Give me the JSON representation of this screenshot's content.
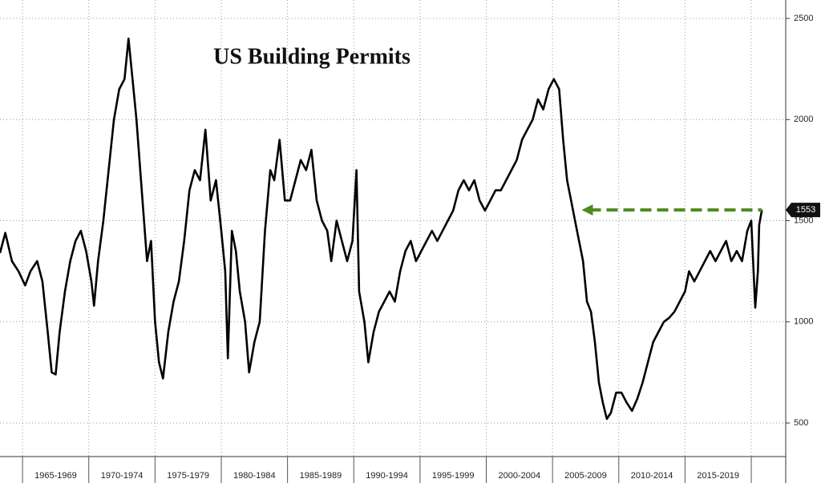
{
  "chart_data": {
    "type": "line",
    "title": "US Building Permits",
    "color": "#000000",
    "x": [
      1963.3,
      1963.7,
      1964.2,
      1964.7,
      1965.2,
      1965.6,
      1966.1,
      1966.5,
      1966.9,
      1967.2,
      1967.5,
      1967.8,
      1968.2,
      1968.6,
      1969.0,
      1969.4,
      1969.8,
      1970.2,
      1970.4,
      1970.7,
      1971.1,
      1971.5,
      1971.9,
      1972.3,
      1972.7,
      1973.0,
      1973.3,
      1973.6,
      1974.0,
      1974.4,
      1974.7,
      1975.0,
      1975.3,
      1975.6,
      1976.0,
      1976.4,
      1976.8,
      1977.2,
      1977.6,
      1978.0,
      1978.4,
      1978.8,
      1979.2,
      1979.6,
      1980.0,
      1980.3,
      1980.5,
      1980.8,
      1981.1,
      1981.4,
      1981.8,
      1982.1,
      1982.5,
      1982.9,
      1983.3,
      1983.7,
      1984.0,
      1984.4,
      1984.8,
      1985.2,
      1985.6,
      1986.0,
      1986.4,
      1986.8,
      1987.2,
      1987.6,
      1988.0,
      1988.3,
      1988.7,
      1989.1,
      1989.5,
      1989.9,
      1990.2,
      1990.4,
      1990.8,
      1991.1,
      1991.5,
      1991.9,
      1992.3,
      1992.7,
      1993.1,
      1993.5,
      1993.9,
      1994.3,
      1994.7,
      1995.1,
      1995.5,
      1995.9,
      1996.3,
      1996.7,
      1997.1,
      1997.5,
      1997.9,
      1998.3,
      1998.7,
      1999.1,
      1999.5,
      1999.9,
      2000.3,
      2000.7,
      2001.1,
      2001.5,
      2001.9,
      2002.3,
      2002.7,
      2003.1,
      2003.5,
      2003.9,
      2004.3,
      2004.7,
      2005.1,
      2005.5,
      2005.8,
      2006.1,
      2006.4,
      2006.7,
      2007.0,
      2007.3,
      2007.6,
      2007.9,
      2008.2,
      2008.5,
      2008.8,
      2009.1,
      2009.4,
      2009.8,
      2010.2,
      2010.6,
      2011.0,
      2011.4,
      2011.8,
      2012.2,
      2012.6,
      2013.0,
      2013.4,
      2013.8,
      2014.2,
      2014.6,
      2015.0,
      2015.3,
      2015.7,
      2016.1,
      2016.5,
      2016.9,
      2017.3,
      2017.7,
      2018.1,
      2018.5,
      2018.9,
      2019.3,
      2019.7,
      2020.0,
      2020.3,
      2020.5,
      2020.6,
      2020.8
    ],
    "values": [
      1340,
      1440,
      1300,
      1250,
      1180,
      1250,
      1300,
      1200,
      950,
      750,
      740,
      950,
      1150,
      1300,
      1400,
      1450,
      1350,
      1200,
      1080,
      1300,
      1500,
      1750,
      2000,
      2150,
      2200,
      2400,
      2200,
      2000,
      1650,
      1300,
      1400,
      1000,
      800,
      720,
      950,
      1100,
      1200,
      1400,
      1650,
      1750,
      1700,
      1950,
      1600,
      1700,
      1450,
      1250,
      820,
      1450,
      1350,
      1150,
      1000,
      750,
      900,
      1000,
      1450,
      1750,
      1700,
      1900,
      1600,
      1600,
      1700,
      1800,
      1750,
      1850,
      1600,
      1500,
      1450,
      1300,
      1500,
      1400,
      1300,
      1400,
      1750,
      1150,
      1000,
      800,
      950,
      1050,
      1100,
      1150,
      1100,
      1250,
      1350,
      1400,
      1300,
      1350,
      1400,
      1450,
      1400,
      1450,
      1500,
      1550,
      1650,
      1700,
      1650,
      1700,
      1600,
      1550,
      1600,
      1650,
      1650,
      1700,
      1750,
      1800,
      1900,
      1950,
      2000,
      2100,
      2050,
      2150,
      2200,
      2150,
      1900,
      1700,
      1600,
      1500,
      1400,
      1300,
      1100,
      1050,
      900,
      700,
      600,
      520,
      550,
      650,
      650,
      600,
      560,
      620,
      700,
      800,
      900,
      950,
      1000,
      1020,
      1050,
      1100,
      1150,
      1250,
      1200,
      1250,
      1300,
      1350,
      1300,
      1350,
      1400,
      1300,
      1350,
      1300,
      1450,
      1500,
      1070,
      1250,
      1480,
      1553
    ],
    "xlim": [
      1963.3,
      2022.6
    ],
    "ylim": [
      334,
      2591
    ],
    "yticks": [
      500,
      1000,
      1500,
      2000,
      2500
    ],
    "xticks": [
      1965,
      1970,
      1975,
      1980,
      1985,
      1990,
      1995,
      2000,
      2005,
      2010,
      2015,
      2020
    ],
    "period_labels": [
      "1965-1969",
      "1970-1974",
      "1975-1979",
      "1980-1984",
      "1985-1989",
      "1990-1994",
      "1995-1999",
      "2000-2004",
      "2005-2009",
      "2010-2014",
      "2015-2019"
    ],
    "grid": true,
    "annotation": {
      "value": 1553,
      "x_start": 2007.2,
      "color": "#4e8a1f"
    }
  }
}
